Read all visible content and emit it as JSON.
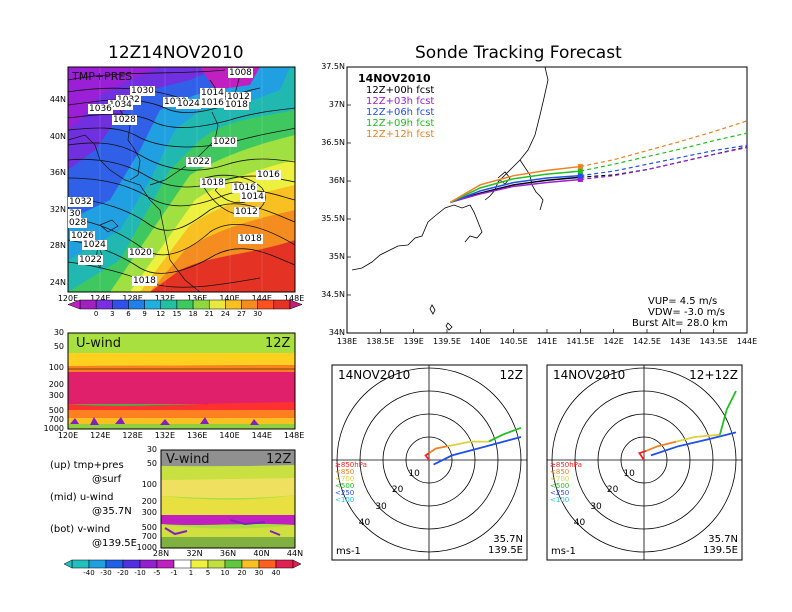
{
  "left_title": "12Z14NOV2010",
  "right_title": "Sonde Tracking Forecast",
  "map_panel": {
    "label": "TMP+PRES",
    "lon_ticks": [
      "120E",
      "124E",
      "128E",
      "132E",
      "136E",
      "140E",
      "144E",
      "148E"
    ],
    "lat_ticks": [
      "44N",
      "40N",
      "36N",
      "32N",
      "28N",
      "24N"
    ],
    "isobar_labels": [
      "1008",
      "1030",
      "1032",
      "1034",
      "1036",
      "1029",
      "1024",
      "1028",
      "1014",
      "1012",
      "1016",
      "1018",
      "1020",
      "1022",
      "1018",
      "1016",
      "1014",
      "1012",
      "1016",
      "1018",
      "1032",
      "30",
      "028",
      "1026",
      "1024",
      "1022",
      "1020",
      "1018"
    ],
    "colorbar_ticks": [
      "0",
      "3",
      "6",
      "9",
      "12",
      "15",
      "18",
      "21",
      "24",
      "27",
      "30"
    ]
  },
  "uwind_panel": {
    "label": "U-wind",
    "time": "12Z",
    "p_ticks": [
      "30",
      "50",
      "100",
      "200",
      "300",
      "500",
      "700",
      "1000"
    ],
    "lon_ticks": [
      "120E",
      "124E",
      "128E",
      "132E",
      "136E",
      "140E",
      "144E",
      "148E"
    ]
  },
  "vwind_panel": {
    "label": "V-wind",
    "time": "12Z",
    "p_ticks": [
      "30",
      "50",
      "100",
      "200",
      "300",
      "500",
      "700",
      "1000"
    ],
    "lat_ticks": [
      "28N",
      "32N",
      "36N",
      "40N",
      "44N"
    ],
    "colorbar_ticks": [
      "-40",
      "-30",
      "-20",
      "-10",
      "-5",
      "-1",
      "1",
      "5",
      "10",
      "20",
      "30",
      "40"
    ]
  },
  "side_notes": [
    "(up) tmp+pres",
    "@surf",
    "(mid) u-wind",
    "@35.7N",
    "(bot) v-wind",
    "@139.5E"
  ],
  "chart_data": [
    {
      "type": "line",
      "title": "Sonde Tracking Forecast",
      "date": "14NOV2010",
      "xlim": [
        138,
        144
      ],
      "ylim": [
        34,
        37.5
      ],
      "x_ticks": [
        "138E",
        "138.5E",
        "139E",
        "139.5E",
        "140E",
        "140.5E",
        "141E",
        "141.5E",
        "142E",
        "142.5E",
        "143E",
        "143.5E",
        "144E"
      ],
      "y_ticks": [
        "34N",
        "34.5N",
        "35N",
        "35.5N",
        "36N",
        "36.5N",
        "37N",
        "37.5N"
      ],
      "series": [
        {
          "name": "12Z+00h fcst",
          "color": "#000000",
          "points": [
            [
              139.55,
              35.72
            ],
            [
              140.0,
              35.84
            ],
            [
              140.5,
              35.95
            ],
            [
              141.0,
              36.01
            ],
            [
              141.5,
              36.05
            ],
            [
              142.0,
              36.08
            ],
            [
              142.5,
              36.15
            ],
            [
              143.0,
              36.25
            ],
            [
              143.5,
              36.35
            ],
            [
              144.0,
              36.45
            ]
          ]
        },
        {
          "name": "12Z+03h fcst",
          "color": "#9a1fd6",
          "points": [
            [
              139.55,
              35.72
            ],
            [
              140.0,
              35.83
            ],
            [
              140.5,
              35.93
            ],
            [
              141.0,
              35.98
            ],
            [
              141.5,
              36.02
            ],
            [
              142.0,
              36.07
            ],
            [
              142.5,
              36.15
            ],
            [
              143.0,
              36.25
            ],
            [
              143.5,
              36.35
            ],
            [
              144.0,
              36.44
            ]
          ]
        },
        {
          "name": "12Z+06h fcst",
          "color": "#2050e8",
          "points": [
            [
              139.55,
              35.72
            ],
            [
              140.0,
              35.87
            ],
            [
              140.5,
              35.98
            ],
            [
              141.0,
              36.04
            ],
            [
              141.5,
              36.07
            ],
            [
              142.0,
              36.13
            ],
            [
              142.5,
              36.22
            ],
            [
              143.0,
              36.31
            ],
            [
              143.5,
              36.4
            ],
            [
              144.0,
              36.47
            ]
          ]
        },
        {
          "name": "12Z+09h fcst",
          "color": "#20c020",
          "points": [
            [
              139.55,
              35.72
            ],
            [
              140.0,
              35.91
            ],
            [
              140.5,
              36.03
            ],
            [
              141.0,
              36.09
            ],
            [
              141.5,
              36.13
            ],
            [
              142.0,
              36.22
            ],
            [
              142.5,
              36.32
            ],
            [
              143.0,
              36.42
            ],
            [
              143.5,
              36.53
            ],
            [
              144.0,
              36.63
            ]
          ]
        },
        {
          "name": "12Z+12h fcst",
          "color": "#f08020",
          "points": [
            [
              139.55,
              35.72
            ],
            [
              140.0,
              35.95
            ],
            [
              140.5,
              36.07
            ],
            [
              141.0,
              36.14
            ],
            [
              141.5,
              36.19
            ],
            [
              142.0,
              36.28
            ],
            [
              142.5,
              36.4
            ],
            [
              143.0,
              36.52
            ],
            [
              143.5,
              36.65
            ],
            [
              144.0,
              36.79
            ]
          ]
        }
      ],
      "annotations": [
        "VUP= 4.5 m/s",
        "VDW= -3.0 m/s",
        "Burst Alt= 28.0 km"
      ]
    },
    {
      "type": "line",
      "title": "14NOV2010",
      "time": "12Z",
      "rings": [
        "10",
        "20",
        "30",
        "40"
      ],
      "unit": "ms-1",
      "location": [
        "35.7N",
        "139.5E"
      ],
      "legend": [
        {
          "label": "≥850hPa",
          "color": "#ff2020"
        },
        {
          "label": "<850",
          "color": "#f08020"
        },
        {
          "label": "<700",
          "color": "#e0d040"
        },
        {
          "label": "<500",
          "color": "#20c020"
        },
        {
          "label": "<250",
          "color": "#2050e8"
        },
        {
          "label": "<100",
          "color": "#20c0e0"
        }
      ],
      "series": [
        {
          "name": "≥850hPa",
          "color": "#ff2020",
          "points": [
            [
              0,
              0
            ],
            [
              -1.5,
              2
            ],
            [
              0,
              3
            ]
          ]
        },
        {
          "name": "<850",
          "color": "#f08020",
          "points": [
            [
              0,
              3
            ],
            [
              3,
              5
            ],
            [
              8,
              6
            ]
          ]
        },
        {
          "name": "<700",
          "color": "#e0d040",
          "points": [
            [
              8,
              6
            ],
            [
              18,
              8
            ],
            [
              26,
              8
            ]
          ]
        },
        {
          "name": "<500",
          "color": "#20c020",
          "points": [
            [
              26,
              8
            ],
            [
              32,
              11
            ],
            [
              40,
              14
            ]
          ]
        },
        {
          "name": "<250",
          "color": "#2050e8",
          "points": [
            [
              2,
              -2
            ],
            [
              10,
              2
            ],
            [
              25,
              6
            ],
            [
              40,
              10
            ]
          ]
        }
      ]
    },
    {
      "type": "line",
      "title": "14NOV2010",
      "time": "12+12Z",
      "rings": [
        "10",
        "20",
        "30",
        "40"
      ],
      "unit": "ms-1",
      "location": [
        "35.7N",
        "139.5E"
      ],
      "legend": [
        {
          "label": "≥850hPa",
          "color": "#ff2020"
        },
        {
          "label": "<850",
          "color": "#f08020"
        },
        {
          "label": "<700",
          "color": "#e0d040"
        },
        {
          "label": "<500",
          "color": "#20c020"
        },
        {
          "label": "<250",
          "color": "#2050e8"
        },
        {
          "label": "<100",
          "color": "#20c0e0"
        }
      ],
      "series": [
        {
          "name": "≥850hPa",
          "color": "#ff2020",
          "points": [
            [
              0,
              0
            ],
            [
              -2,
              3
            ],
            [
              1,
              4
            ]
          ]
        },
        {
          "name": "<850",
          "color": "#f08020",
          "points": [
            [
              1,
              4
            ],
            [
              6,
              6
            ],
            [
              14,
              8
            ]
          ]
        },
        {
          "name": "<700",
          "color": "#e0d040",
          "points": [
            [
              14,
              8
            ],
            [
              22,
              10
            ],
            [
              33,
              11
            ]
          ]
        },
        {
          "name": "<500",
          "color": "#20c020",
          "points": [
            [
              33,
              11
            ],
            [
              36,
              22
            ],
            [
              40,
              30
            ]
          ]
        },
        {
          "name": "<250",
          "color": "#2050e8",
          "points": [
            [
              3,
              2
            ],
            [
              15,
              6
            ],
            [
              28,
              9
            ],
            [
              40,
              12
            ]
          ]
        }
      ]
    }
  ]
}
